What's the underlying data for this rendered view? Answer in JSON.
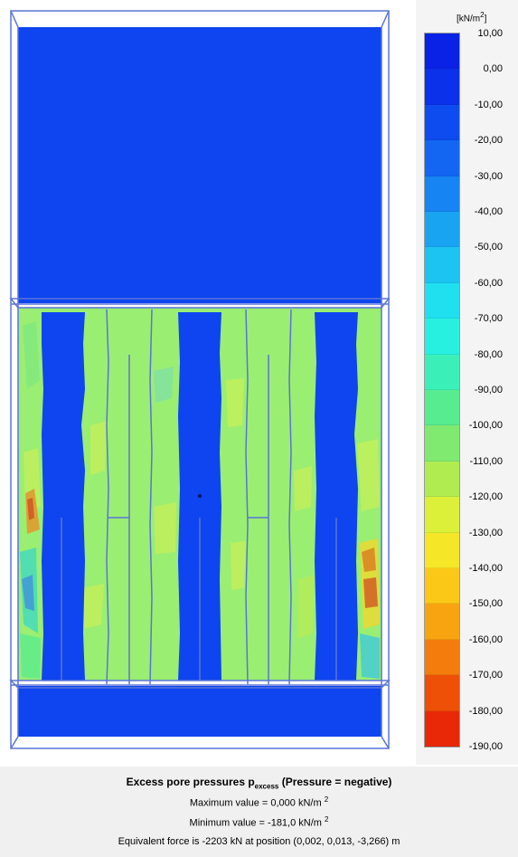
{
  "legend": {
    "unit_prefix": "[kN/m",
    "unit_power": "2",
    "unit_suffix": "]",
    "ticks": [
      "10,00",
      "0,00",
      "-10,00",
      "-20,00",
      "-30,00",
      "-40,00",
      "-50,00",
      "-60,00",
      "-70,00",
      "-80,00",
      "-90,00",
      "-100,00",
      "-110,00",
      "-120,00",
      "-130,00",
      "-140,00",
      "-150,00",
      "-160,00",
      "-170,00",
      "-180,00",
      "-190,00"
    ],
    "band_colors": [
      "#0a22e6",
      "#0b32ea",
      "#0e4cf0",
      "#1266f2",
      "#1684f2",
      "#19a4f2",
      "#1cc4f2",
      "#20e0f0",
      "#28f0e0",
      "#3af0b8",
      "#58ec90",
      "#80ea70",
      "#b0ec50",
      "#dcf03a",
      "#f6e628",
      "#fcc818",
      "#f8a410",
      "#f47c0c",
      "#ee5008",
      "#e82806"
    ]
  },
  "caption": {
    "title_main": "Excess pore pressures p",
    "title_sub": "excess",
    "title_tail": " (Pressure = negative)",
    "max_prefix": "Maximum value = 0,000 kN/m",
    "max_power": "2",
    "min_prefix": "Minimum value = -181,0 kN/m",
    "min_power": "2",
    "equivalent_force": "Equivalent force is -2203 kN at position (0,002, 0,013, -3,266) m"
  },
  "colors": {
    "model_blue": "#0e45f0",
    "soil_green": "#9aee72",
    "outline": "#5a74d8",
    "caption_bg": "#f0f0f0"
  }
}
